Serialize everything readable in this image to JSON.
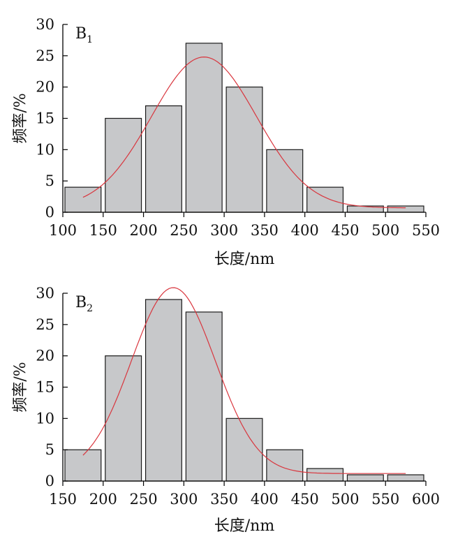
{
  "chart_data": [
    {
      "type": "bar",
      "panel_label": "B",
      "panel_subscript": "1",
      "xlabel": "长度/nm",
      "ylabel": "频率/%",
      "xlim": [
        100,
        550
      ],
      "ylim": [
        0,
        30
      ],
      "xticks": [
        100,
        150,
        200,
        250,
        300,
        350,
        400,
        450,
        500,
        550
      ],
      "yticks": [
        0,
        5,
        10,
        15,
        20,
        25,
        30
      ],
      "bins": [
        {
          "start": 100,
          "end": 150,
          "value": 4
        },
        {
          "start": 150,
          "end": 200,
          "value": 15
        },
        {
          "start": 200,
          "end": 250,
          "value": 17
        },
        {
          "start": 250,
          "end": 300,
          "value": 27
        },
        {
          "start": 300,
          "end": 350,
          "value": 20
        },
        {
          "start": 350,
          "end": 400,
          "value": 10
        },
        {
          "start": 400,
          "end": 450,
          "value": 4
        },
        {
          "start": 450,
          "end": 500,
          "value": 1
        },
        {
          "start": 500,
          "end": 550,
          "value": 1
        }
      ],
      "fit_curve": {
        "type": "gaussian",
        "x_range": [
          125,
          525
        ],
        "peak_x": 275,
        "peak_y": 24.8,
        "sigma": 65,
        "baseline": 0.7
      }
    },
    {
      "type": "bar",
      "panel_label": "B",
      "panel_subscript": "2",
      "xlabel": "长度/nm",
      "ylabel": "频率/%",
      "xlim": [
        150,
        600
      ],
      "ylim": [
        0,
        30
      ],
      "xticks": [
        150,
        200,
        250,
        300,
        350,
        400,
        450,
        500,
        550,
        600
      ],
      "yticks": [
        0,
        5,
        10,
        15,
        20,
        25,
        30
      ],
      "bins": [
        {
          "start": 150,
          "end": 200,
          "value": 5
        },
        {
          "start": 200,
          "end": 250,
          "value": 20
        },
        {
          "start": 250,
          "end": 300,
          "value": 29
        },
        {
          "start": 300,
          "end": 350,
          "value": 27
        },
        {
          "start": 350,
          "end": 400,
          "value": 10
        },
        {
          "start": 400,
          "end": 450,
          "value": 5
        },
        {
          "start": 450,
          "end": 500,
          "value": 2
        },
        {
          "start": 500,
          "end": 550,
          "value": 1
        },
        {
          "start": 550,
          "end": 600,
          "value": 1
        }
      ],
      "fit_curve": {
        "type": "gaussian",
        "x_range": [
          175,
          575
        ],
        "peak_x": 287,
        "peak_y": 30.9,
        "sigma": 52,
        "baseline": 1.2
      }
    }
  ],
  "colors": {
    "bar_fill": "#c7c8ca",
    "bar_stroke": "#1a1a1a",
    "fit_curve": "#d9363e",
    "axis": "#000000"
  }
}
